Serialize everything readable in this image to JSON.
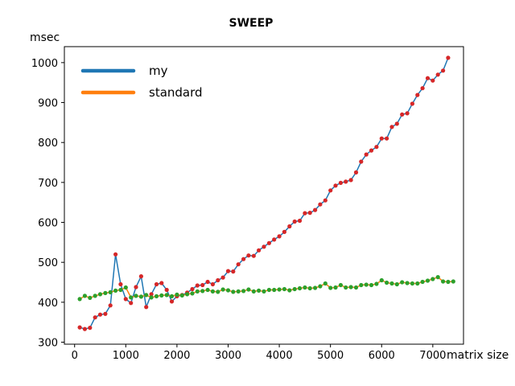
{
  "chart_data": {
    "type": "line",
    "title": "SWEEP",
    "xlabel": "matrix size",
    "ylabel": "msec",
    "xlim": [
      -200,
      7600
    ],
    "ylim": [
      295,
      1040
    ],
    "xticks": [
      0,
      1000,
      2000,
      3000,
      4000,
      5000,
      6000,
      7000
    ],
    "yticks": [
      300,
      400,
      500,
      600,
      700,
      800,
      900,
      1000
    ],
    "grid": false,
    "legend_position": "top-left",
    "series": [
      {
        "name": "my",
        "line_color": "#1f77b4",
        "marker_color": "#d62728",
        "x": [
          100,
          200,
          300,
          400,
          500,
          600,
          700,
          800,
          900,
          1000,
          1100,
          1200,
          1300,
          1400,
          1500,
          1600,
          1700,
          1800,
          1900,
          2000,
          2100,
          2200,
          2300,
          2400,
          2500,
          2600,
          2700,
          2800,
          2900,
          3000,
          3100,
          3200,
          3300,
          3400,
          3500,
          3600,
          3700,
          3800,
          3900,
          4000,
          4100,
          4200,
          4300,
          4400,
          4500,
          4600,
          4700,
          4800,
          4900,
          5000,
          5100,
          5200,
          5300,
          5400,
          5500,
          5600,
          5700,
          5800,
          5900,
          6000,
          6100,
          6200,
          6300,
          6400,
          6500,
          6600,
          6700,
          6800,
          6900,
          7000,
          7100,
          7200,
          7300
        ],
        "values": [
          337,
          333,
          336,
          362,
          369,
          371,
          392,
          520,
          445,
          408,
          398,
          438,
          465,
          388,
          420,
          445,
          448,
          431,
          402,
          415,
          418,
          424,
          433,
          442,
          443,
          451,
          445,
          455,
          462,
          478,
          477,
          495,
          508,
          517,
          516,
          530,
          539,
          548,
          557,
          565,
          576,
          590,
          602,
          604,
          623,
          624,
          631,
          645,
          655,
          680,
          692,
          699,
          702,
          706,
          725,
          752,
          770,
          780,
          789,
          810,
          810,
          839,
          847,
          870,
          873,
          897,
          919,
          936,
          961,
          955,
          970,
          980,
          1012
        ]
      },
      {
        "name": "standard",
        "line_color": "#ff7f0e",
        "marker_color": "#2ca02c",
        "x": [
          100,
          200,
          300,
          400,
          500,
          600,
          700,
          800,
          900,
          1000,
          1100,
          1200,
          1300,
          1400,
          1500,
          1600,
          1700,
          1800,
          1900,
          2000,
          2100,
          2200,
          2300,
          2400,
          2500,
          2600,
          2700,
          2800,
          2900,
          3000,
          3100,
          3200,
          3300,
          3400,
          3500,
          3600,
          3700,
          3800,
          3900,
          4000,
          4100,
          4200,
          4300,
          4400,
          4500,
          4600,
          4700,
          4800,
          4900,
          5000,
          5100,
          5200,
          5300,
          5400,
          5500,
          5600,
          5700,
          5800,
          5900,
          6000,
          6100,
          6200,
          6300,
          6400,
          6500,
          6600,
          6700,
          6800,
          6900,
          7000,
          7100,
          7200,
          7300,
          7400
        ],
        "values": [
          408,
          416,
          411,
          416,
          420,
          423,
          425,
          429,
          431,
          437,
          412,
          416,
          414,
          418,
          412,
          415,
          417,
          418,
          415,
          419,
          417,
          420,
          422,
          427,
          428,
          431,
          427,
          426,
          432,
          430,
          426,
          427,
          428,
          432,
          427,
          429,
          427,
          431,
          431,
          432,
          433,
          430,
          433,
          435,
          437,
          435,
          436,
          440,
          447,
          436,
          437,
          443,
          437,
          438,
          437,
          443,
          444,
          443,
          446,
          455,
          449,
          447,
          445,
          450,
          448,
          447,
          447,
          451,
          454,
          458,
          463,
          452,
          451,
          452
        ]
      }
    ]
  }
}
